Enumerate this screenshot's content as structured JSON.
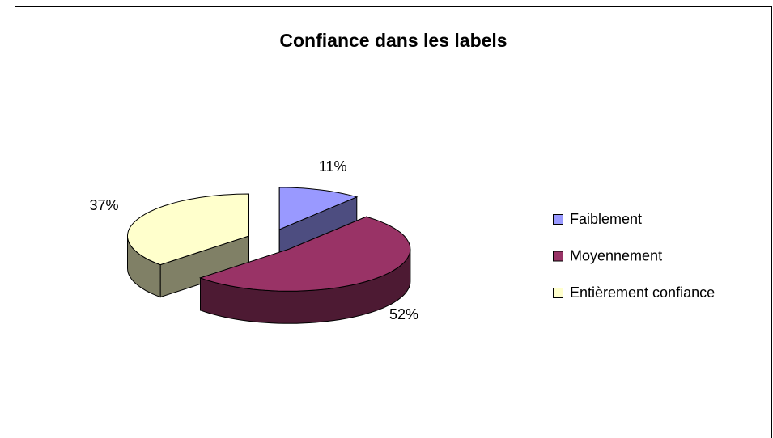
{
  "chart_data": {
    "type": "pie3d",
    "title": "Confiance dans les labels",
    "categories": [
      "Faiblement",
      "Moyennement",
      "Entièrement confiance"
    ],
    "values": [
      11,
      52,
      37
    ],
    "value_labels": [
      "11%",
      "52%",
      "37%"
    ],
    "colors": [
      "#9999ff",
      "#993366",
      "#ffffcc"
    ],
    "side_colors": [
      "#4d4d80",
      "#4d1a33",
      "#808066"
    ],
    "legend": "right"
  }
}
